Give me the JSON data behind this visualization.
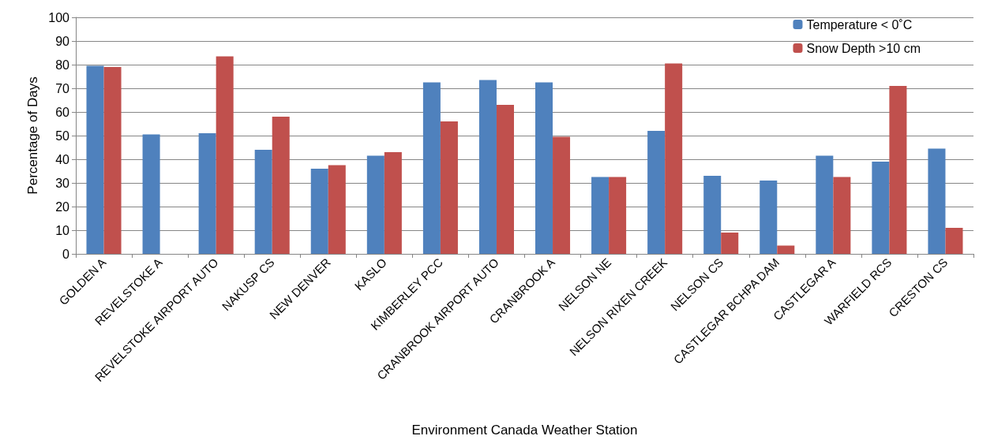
{
  "chart_data": {
    "type": "bar",
    "xlabel": "Environment Canada Weather Station",
    "ylabel": "Percentage of Days",
    "categories": [
      "GOLDEN A",
      "REVELSTOKE A",
      "REVELSTOKE AIRPORT AUTO",
      "NAKUSP CS",
      "NEW DENVER",
      "KASLO",
      "KIMBERLEY PCC",
      "CRANBROOK AIRPORT AUTO",
      "CRANBROOK A",
      "NELSON NE",
      "NELSON RIXEN CREEK",
      "NELSON CS",
      "CASTLEGAR BCHPA DAM",
      "CASTLEGAR A",
      "WARFIELD RCS",
      "CRESTON CS"
    ],
    "series": [
      {
        "name": "Temperature < 0˚C",
        "color": "#4f81bd",
        "values": [
          79.5,
          50.5,
          51,
          44,
          36,
          41.5,
          72.5,
          73.5,
          72.5,
          32.5,
          52,
          33,
          31,
          41.5,
          39,
          44.5
        ]
      },
      {
        "name": "Snow Depth >10 cm",
        "color": "#c0504d",
        "values": [
          79,
          null,
          83.5,
          58,
          37.5,
          43,
          56,
          63,
          49.5,
          32.5,
          80.5,
          9,
          3.5,
          32.5,
          71,
          11
        ]
      }
    ],
    "ylim": [
      0,
      100
    ],
    "yticks": [
      0,
      10,
      20,
      30,
      40,
      50,
      60,
      70,
      80,
      90,
      100
    ],
    "grid": "y",
    "legend": "top right"
  }
}
